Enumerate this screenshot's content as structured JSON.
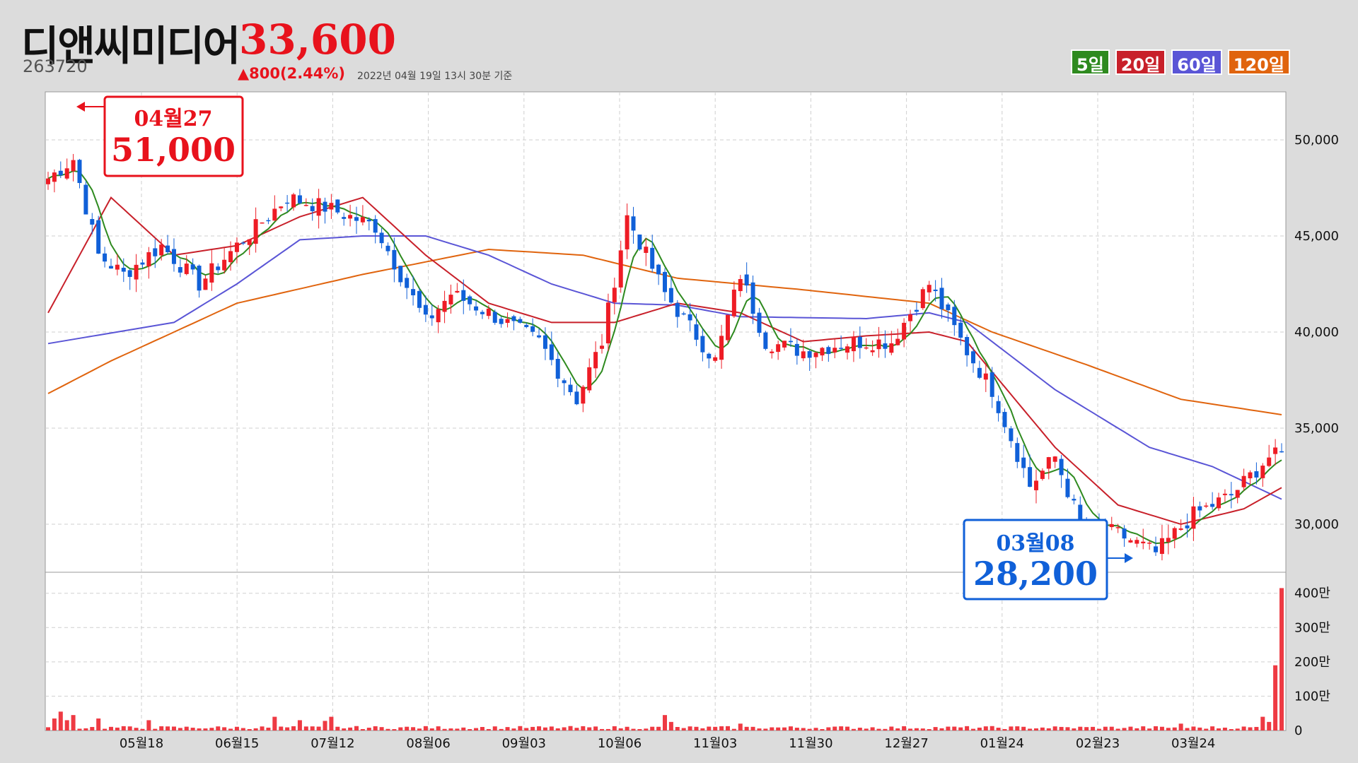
{
  "header": {
    "name": "디앤씨미디어",
    "price": "33,600",
    "code": "263720",
    "change": "▲800(2.44%)",
    "as_of": "2022년 04월 19일 13시 30분 기준"
  },
  "legend": [
    {
      "label": "5일",
      "color": "#2e8a1f"
    },
    {
      "label": "20일",
      "color": "#c8202a"
    },
    {
      "label": "60일",
      "color": "#5a55d6"
    },
    {
      "label": "120일",
      "color": "#e0640e"
    }
  ],
  "callouts": {
    "high": {
      "date": "04월27",
      "value": "51,000"
    },
    "low": {
      "date": "03월08",
      "value": "28,200"
    }
  },
  "chart_data": [
    {
      "type": "line",
      "title": "",
      "x_labels": [
        "05월18",
        "06월15",
        "07월12",
        "08월06",
        "09월03",
        "10월06",
        "11월03",
        "11월30",
        "12월27",
        "01월24",
        "02월23",
        "03월24"
      ],
      "y_ticks": [
        "30,000",
        "35,000",
        "40,000",
        "45,000",
        "50,000"
      ],
      "ylim": [
        27500,
        52500
      ],
      "grid": true,
      "up_color": "#ee1c25",
      "down_color": "#1060d8",
      "close_anchors": [
        [
          0,
          48000
        ],
        [
          4,
          49000
        ],
        [
          8,
          44000
        ],
        [
          12,
          43000
        ],
        [
          18,
          44500
        ],
        [
          24,
          42500
        ],
        [
          30,
          44500
        ],
        [
          38,
          47000
        ],
        [
          44,
          46500
        ],
        [
          52,
          45500
        ],
        [
          56,
          43000
        ],
        [
          60,
          40500
        ],
        [
          64,
          42000
        ],
        [
          70,
          41000
        ],
        [
          78,
          39500
        ],
        [
          84,
          36500
        ],
        [
          88,
          39500
        ],
        [
          92,
          46000
        ],
        [
          98,
          42000
        ],
        [
          106,
          38500
        ],
        [
          110,
          43000
        ],
        [
          114,
          39500
        ],
        [
          120,
          39000
        ],
        [
          128,
          39500
        ],
        [
          134,
          39500
        ],
        [
          140,
          42500
        ],
        [
          146,
          39000
        ],
        [
          150,
          37000
        ],
        [
          156,
          32000
        ],
        [
          160,
          33500
        ],
        [
          164,
          30000
        ],
        [
          170,
          29500
        ],
        [
          176,
          28500
        ],
        [
          182,
          30500
        ],
        [
          188,
          31500
        ],
        [
          194,
          33500
        ],
        [
          196,
          33600
        ]
      ],
      "series": [
        {
          "name": "5일",
          "color": "#2e8a1f"
        },
        {
          "name": "20일",
          "color": "#c8202a"
        },
        {
          "name": "60일",
          "color": "#5a55d6"
        },
        {
          "name": "120일",
          "color": "#e0640e"
        }
      ],
      "ma_anchors": {
        "20": [
          [
            0,
            41000
          ],
          [
            10,
            47000
          ],
          [
            20,
            44000
          ],
          [
            30,
            44500
          ],
          [
            40,
            46000
          ],
          [
            50,
            47000
          ],
          [
            60,
            44000
          ],
          [
            70,
            41500
          ],
          [
            80,
            40500
          ],
          [
            90,
            40500
          ],
          [
            100,
            41500
          ],
          [
            110,
            41000
          ],
          [
            120,
            39500
          ],
          [
            130,
            39800
          ],
          [
            140,
            40000
          ],
          [
            146,
            39500
          ],
          [
            160,
            34000
          ],
          [
            170,
            31000
          ],
          [
            180,
            30000
          ],
          [
            190,
            30800
          ],
          [
            196,
            31900
          ]
        ],
        "60": [
          [
            0,
            39400
          ],
          [
            20,
            40500
          ],
          [
            30,
            42500
          ],
          [
            40,
            44800
          ],
          [
            50,
            45000
          ],
          [
            60,
            45000
          ],
          [
            70,
            44000
          ],
          [
            80,
            42500
          ],
          [
            90,
            41500
          ],
          [
            100,
            41400
          ],
          [
            110,
            40800
          ],
          [
            130,
            40700
          ],
          [
            140,
            41000
          ],
          [
            146,
            40500
          ],
          [
            160,
            37000
          ],
          [
            175,
            34000
          ],
          [
            185,
            33000
          ],
          [
            196,
            31300
          ]
        ],
        "120": [
          [
            0,
            36800
          ],
          [
            10,
            38500
          ],
          [
            30,
            41500
          ],
          [
            50,
            43000
          ],
          [
            70,
            44300
          ],
          [
            85,
            44000
          ],
          [
            100,
            42800
          ],
          [
            120,
            42200
          ],
          [
            140,
            41500
          ],
          [
            150,
            40000
          ],
          [
            165,
            38300
          ],
          [
            180,
            36500
          ],
          [
            196,
            35700
          ]
        ]
      }
    },
    {
      "type": "bar",
      "title": "",
      "y_ticks": [
        "0",
        "100만",
        "200만",
        "300만",
        "400만"
      ],
      "ylim": [
        0,
        4200000
      ],
      "bar_color": "#ee3a43",
      "spikes": [
        [
          1,
          350000
        ],
        [
          2,
          550000
        ],
        [
          3,
          300000
        ],
        [
          4,
          450000
        ],
        [
          8,
          350000
        ],
        [
          16,
          300000
        ],
        [
          36,
          400000
        ],
        [
          40,
          300000
        ],
        [
          44,
          280000
        ],
        [
          45,
          400000
        ],
        [
          98,
          450000
        ],
        [
          99,
          250000
        ],
        [
          110,
          200000
        ],
        [
          180,
          200000
        ],
        [
          193,
          400000
        ],
        [
          194,
          250000
        ],
        [
          195,
          1900000
        ],
        [
          196,
          4150000
        ]
      ]
    }
  ]
}
